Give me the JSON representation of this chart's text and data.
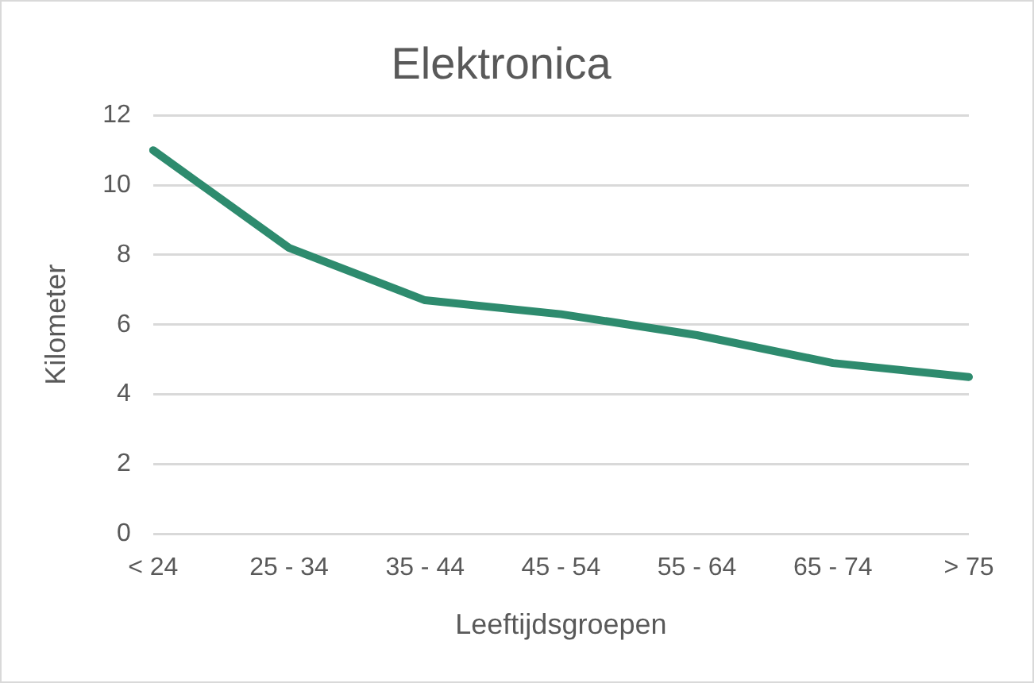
{
  "chart_data": {
    "type": "line",
    "title": "Elektronica",
    "xlabel": "Leeftijdsgroepen",
    "ylabel": "Kilometer",
    "categories": [
      "< 24",
      "25 - 34",
      "35 - 44",
      "45 - 54",
      "55 - 64",
      "65 - 74",
      "> 75"
    ],
    "series": [
      {
        "color": "#2e8b6e",
        "values": [
          11.0,
          8.2,
          6.7,
          6.3,
          5.7,
          4.9,
          4.5
        ]
      }
    ],
    "ylim": [
      0,
      12
    ],
    "yticks": [
      0,
      2,
      4,
      6,
      8,
      10,
      12
    ],
    "grid": "y",
    "legend": false,
    "marker": "none",
    "line_style": "solid"
  }
}
